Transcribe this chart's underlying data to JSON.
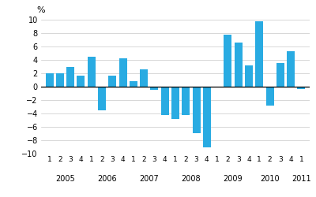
{
  "values": [
    2.0,
    2.0,
    3.0,
    1.6,
    4.5,
    -3.5,
    1.6,
    4.2,
    0.8,
    2.6,
    -0.5,
    -4.2,
    -4.8,
    -4.2,
    -6.9,
    -9.0,
    0.0,
    7.8,
    6.6,
    3.2,
    9.8,
    -2.8,
    3.5,
    5.3,
    -0.4
  ],
  "quarter_labels": [
    "1",
    "2",
    "3",
    "4",
    "1",
    "2",
    "3",
    "4",
    "1",
    "2",
    "3",
    "4",
    "1",
    "2",
    "3",
    "4",
    "1",
    "2",
    "3",
    "4",
    "1",
    "2",
    "3",
    "4",
    "1"
  ],
  "year_labels": [
    "2005",
    "2006",
    "2007",
    "2008",
    "2009",
    "2010",
    "2011"
  ],
  "year_tick_positions": [
    2.5,
    6.5,
    10.5,
    14.5,
    18.5,
    22.0,
    25.0
  ],
  "bar_color": "#29ABE2",
  "ylim": [
    -10,
    10
  ],
  "yticks": [
    -10,
    -8,
    -6,
    -4,
    -2,
    0,
    2,
    4,
    6,
    8,
    10
  ],
  "ylabel": "%",
  "background_color": "#ffffff",
  "grid_color": "#c8c8c8",
  "figsize": [
    4.0,
    2.5
  ],
  "dpi": 100
}
